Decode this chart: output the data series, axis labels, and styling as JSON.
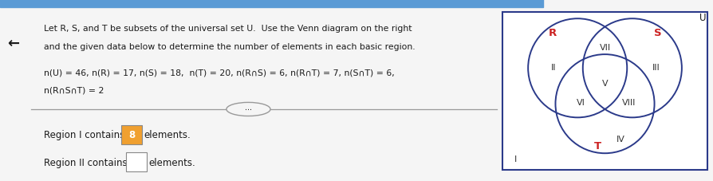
{
  "title_line1": "Let R, S, and T be subsets of the universal set U.  Use the Venn diagram on the right",
  "title_line2": "and the given data below to determine the number of elements in each basic region.",
  "data_line": "n(U) = 46, n(R) = 17, n(S) = 18,  n(T) = 20, n(R∩S) = 6, n(R∩T) = 7, n(S∩T) = 6,",
  "data_line2": "n(R∩S∩T) = 2",
  "region1_text": "Region I contains ",
  "region1_value": "8",
  "region1_suffix": " elements.",
  "region2_text": "Region II contains ",
  "region2_suffix": " elements.",
  "bg_color": "#f5f5f5",
  "text_color": "#1a1a1a",
  "venn_circle_color": "#2b3a8a",
  "venn_label_color": "#cc2222",
  "region_label_color": "#333333",
  "divider_color": "#999999",
  "top_bar_color": "#5b9bd5",
  "outer_box_color": "#2b3a8a",
  "U_label": "U",
  "R_label": "R",
  "S_label": "S",
  "T_label": "T"
}
